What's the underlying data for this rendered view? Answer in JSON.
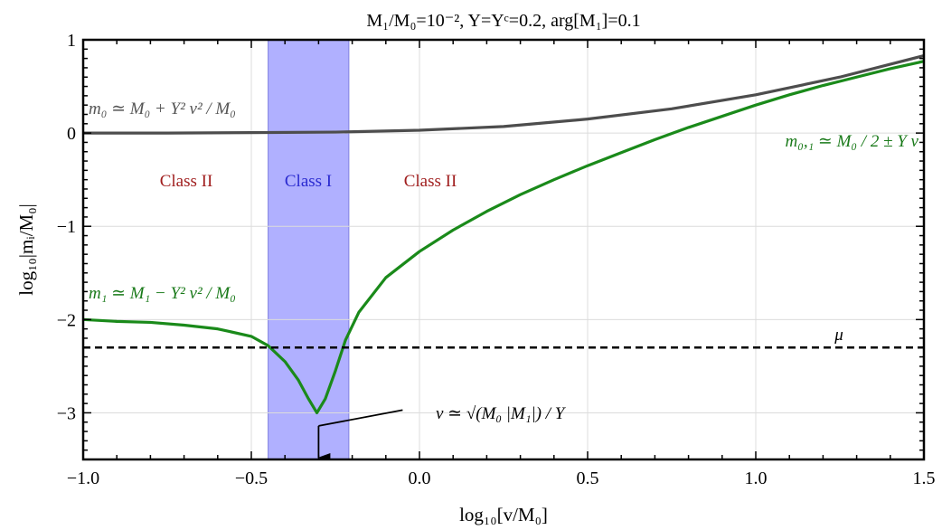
{
  "chart_data": {
    "type": "line",
    "title": "M₁/M₀=10⁻², Y=Yᶜ=0.2, arg[M₁]=0.1",
    "xlabel": "log₁₀[v/M₀]",
    "ylabel": "log₁₀|mᵢ/M₀|",
    "xlim": [
      -1.0,
      1.5
    ],
    "ylim": [
      -3.5,
      1.0
    ],
    "x_ticks": [
      "−1.0",
      "−0.5",
      "0.0",
      "0.5",
      "1.0",
      "1.5"
    ],
    "x_tick_values": [
      -1.0,
      -0.5,
      0.0,
      0.5,
      1.0,
      1.5
    ],
    "y_ticks": [
      "1",
      "0",
      "−1",
      "−2",
      "−3"
    ],
    "y_tick_values": [
      1,
      0,
      -1,
      -2,
      -3
    ],
    "grid": true,
    "series": [
      {
        "role": "m0",
        "color": "#4d4d4d",
        "points": [
          [
            -1.0,
            0.0
          ],
          [
            -0.75,
            0.0
          ],
          [
            -0.5,
            0.005
          ],
          [
            -0.25,
            0.01
          ],
          [
            0.0,
            0.03
          ],
          [
            0.25,
            0.07
          ],
          [
            0.5,
            0.15
          ],
          [
            0.75,
            0.26
          ],
          [
            1.0,
            0.41
          ],
          [
            1.25,
            0.6
          ],
          [
            1.5,
            0.83
          ]
        ]
      },
      {
        "role": "m1_m01",
        "color": "#1a8a1a",
        "points": [
          [
            -1.0,
            -2.0
          ],
          [
            -0.9,
            -2.02
          ],
          [
            -0.8,
            -2.03
          ],
          [
            -0.7,
            -2.06
          ],
          [
            -0.6,
            -2.1
          ],
          [
            -0.5,
            -2.18
          ],
          [
            -0.45,
            -2.28
          ],
          [
            -0.4,
            -2.45
          ],
          [
            -0.36,
            -2.65
          ],
          [
            -0.33,
            -2.85
          ],
          [
            -0.305,
            -3.0
          ],
          [
            -0.28,
            -2.85
          ],
          [
            -0.25,
            -2.55
          ],
          [
            -0.22,
            -2.22
          ],
          [
            -0.18,
            -1.92
          ],
          [
            -0.1,
            -1.55
          ],
          [
            0.0,
            -1.27
          ],
          [
            0.1,
            -1.04
          ],
          [
            0.2,
            -0.84
          ],
          [
            0.3,
            -0.66
          ],
          [
            0.4,
            -0.5
          ],
          [
            0.5,
            -0.35
          ],
          [
            0.6,
            -0.21
          ],
          [
            0.7,
            -0.07
          ],
          [
            0.8,
            0.06
          ],
          [
            0.9,
            0.18
          ],
          [
            1.0,
            0.3
          ],
          [
            1.1,
            0.41
          ],
          [
            1.2,
            0.51
          ],
          [
            1.3,
            0.6
          ],
          [
            1.4,
            0.69
          ],
          [
            1.5,
            0.77
          ]
        ]
      },
      {
        "role": "mu",
        "color": "#000000",
        "dashed": true,
        "points": [
          [
            -1.0,
            -2.3
          ],
          [
            1.5,
            -2.3
          ]
        ]
      }
    ],
    "band": {
      "x": [
        -0.45,
        -0.21
      ],
      "color": "#b0b0ff",
      "label": "Class I"
    },
    "region_labels": [
      {
        "text": "Class II",
        "x": -0.75,
        "y": -0.52,
        "color": "#a01e1e"
      },
      {
        "text": "Class I",
        "x": -0.33,
        "y": -0.52,
        "color": "#2a2ad0"
      },
      {
        "text": "Class II",
        "x": 0.05,
        "y": -0.52,
        "color": "#a01e1e"
      }
    ],
    "annotations": {
      "m0_eq": "m₀ ≃ M₀ + Y² v² / M₀",
      "m1_eq": "m₁ ≃ M₁ − Y² v² / M₀",
      "m01_eq": "m₀,₁ ≃ M₀ / 2 ± Y v",
      "mu_label": "μ",
      "v_eq": "v ≃ √(M₀ |M₁|) / Y"
    },
    "arrow": {
      "from": [
        -0.05,
        -2.97
      ],
      "to": [
        -0.3,
        -3.5
      ]
    }
  }
}
